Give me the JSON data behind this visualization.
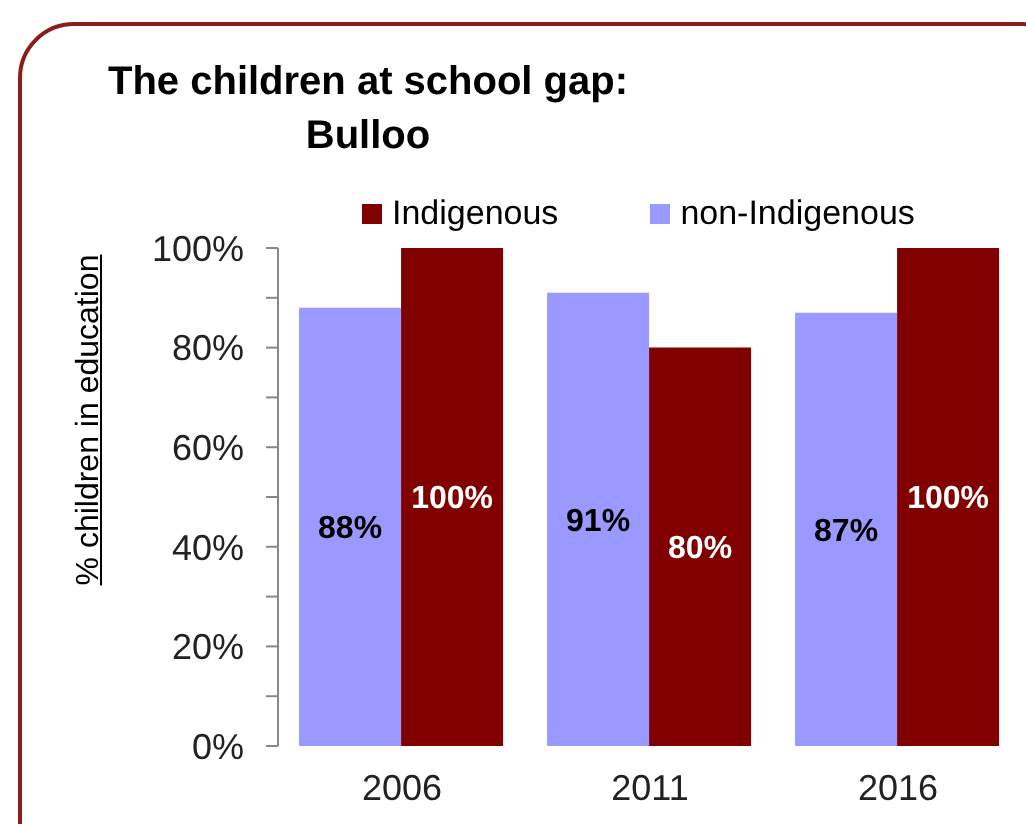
{
  "chart_data": {
    "type": "bar",
    "title": "The children at school gap:\nBulloo",
    "ylabel": "% children in education",
    "categories": [
      "2006",
      "2011",
      "2016"
    ],
    "series": [
      {
        "name": "Indigenous",
        "color": "#800000",
        "values": [
          100,
          80,
          100
        ],
        "value_labels": [
          "100%",
          "80%",
          "100%"
        ]
      },
      {
        "name": "non-Indigenous",
        "color": "#9999ff",
        "values": [
          88,
          91,
          87
        ],
        "value_labels": [
          "88%",
          "91%",
          "87%"
        ]
      }
    ],
    "ylim": [
      0,
      100
    ],
    "yticks": [
      {
        "value": 0,
        "label": "0%"
      },
      {
        "value": 10,
        "label": null
      },
      {
        "value": 20,
        "label": "20%"
      },
      {
        "value": 30,
        "label": null
      },
      {
        "value": 40,
        "label": "40%"
      },
      {
        "value": 50,
        "label": null
      },
      {
        "value": 60,
        "label": "60%"
      },
      {
        "value": 70,
        "label": null
      },
      {
        "value": 80,
        "label": "80%"
      },
      {
        "value": 90,
        "label": null
      },
      {
        "value": 100,
        "label": "100%"
      }
    ],
    "legend": "top"
  }
}
